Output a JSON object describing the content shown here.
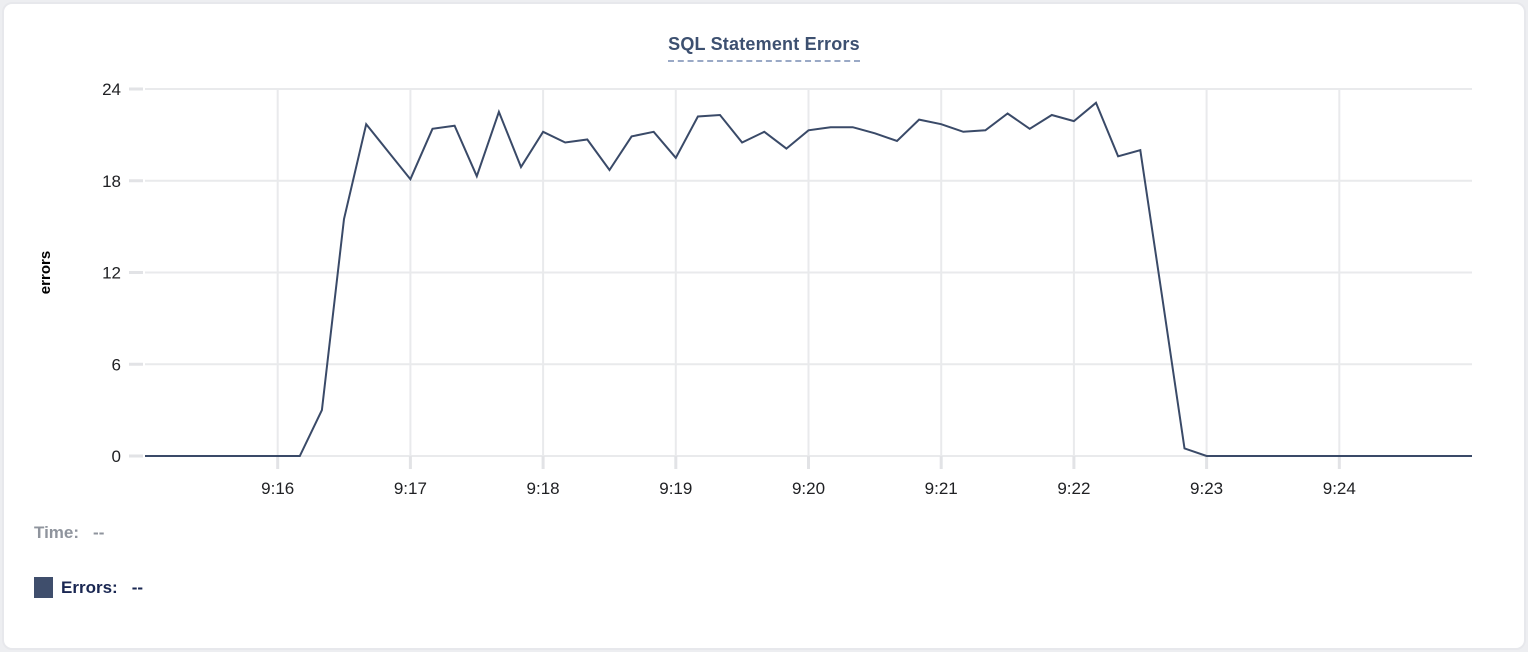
{
  "card": {
    "title": "SQL Statement Errors"
  },
  "footer": {
    "time_label": "Time:",
    "time_value": "--",
    "errors_label": "Errors:",
    "errors_value": "--"
  },
  "colors": {
    "line": "#3a4a68",
    "grid": "#e9eaec",
    "tick": "#e2e3e6",
    "axis_text": "#202124",
    "ylabel_text": "#000000",
    "title_text": "#3d5070",
    "title_underline": "#9aa9c6",
    "time_text": "#8f949d",
    "legend_text": "#1a2752",
    "legend_swatch": "#3f4e6c",
    "card_border": "#e7e8ec"
  },
  "chart_data": {
    "type": "line",
    "title": "SQL Statement Errors",
    "xlabel": "",
    "ylabel": "errors",
    "ylim": [
      0,
      24
    ],
    "yticks": [
      0,
      6,
      12,
      18,
      24
    ],
    "xtick_labels": [
      "9:16",
      "9:17",
      "9:18",
      "9:19",
      "9:20",
      "9:21",
      "9:22",
      "9:23",
      "9:24"
    ],
    "x_range": [
      "9:15:00",
      "9:25:00"
    ],
    "grid": true,
    "legend_position": "below-left",
    "series": [
      {
        "name": "Errors",
        "x": [
          "9:15:00",
          "9:15:10",
          "9:15:20",
          "9:15:30",
          "9:15:40",
          "9:15:50",
          "9:16:00",
          "9:16:10",
          "9:16:20",
          "9:16:30",
          "9:16:40",
          "9:16:50",
          "9:17:00",
          "9:17:10",
          "9:17:20",
          "9:17:30",
          "9:17:40",
          "9:17:50",
          "9:18:00",
          "9:18:10",
          "9:18:20",
          "9:18:30",
          "9:18:40",
          "9:18:50",
          "9:19:00",
          "9:19:10",
          "9:19:20",
          "9:19:30",
          "9:19:40",
          "9:19:50",
          "9:20:00",
          "9:20:10",
          "9:20:20",
          "9:20:30",
          "9:20:40",
          "9:20:50",
          "9:21:00",
          "9:21:10",
          "9:21:20",
          "9:21:30",
          "9:21:40",
          "9:21:50",
          "9:22:00",
          "9:22:10",
          "9:22:20",
          "9:22:30",
          "9:22:40",
          "9:22:50",
          "9:23:00",
          "9:23:10",
          "9:23:20",
          "9:23:30",
          "9:23:40",
          "9:23:50",
          "9:24:00",
          "9:24:10",
          "9:24:20",
          "9:24:30",
          "9:24:40",
          "9:24:50",
          "9:25:00"
        ],
        "values": [
          0,
          0,
          0,
          0,
          0,
          0,
          0,
          0,
          3,
          15.5,
          21.7,
          19.9,
          18.1,
          21.4,
          21.6,
          18.3,
          22.5,
          18.9,
          21.2,
          20.5,
          20.7,
          18.7,
          20.9,
          21.2,
          19.5,
          22.2,
          22.3,
          20.5,
          21.2,
          20.1,
          21.3,
          21.5,
          21.5,
          21.1,
          20.6,
          22,
          21.7,
          21.2,
          21.3,
          22.4,
          21.4,
          22.3,
          21.9,
          23.1,
          19.6,
          20,
          10.3,
          0.5,
          0,
          0,
          0,
          0,
          0,
          0,
          0,
          0,
          0,
          0,
          0,
          0,
          0
        ]
      }
    ]
  }
}
